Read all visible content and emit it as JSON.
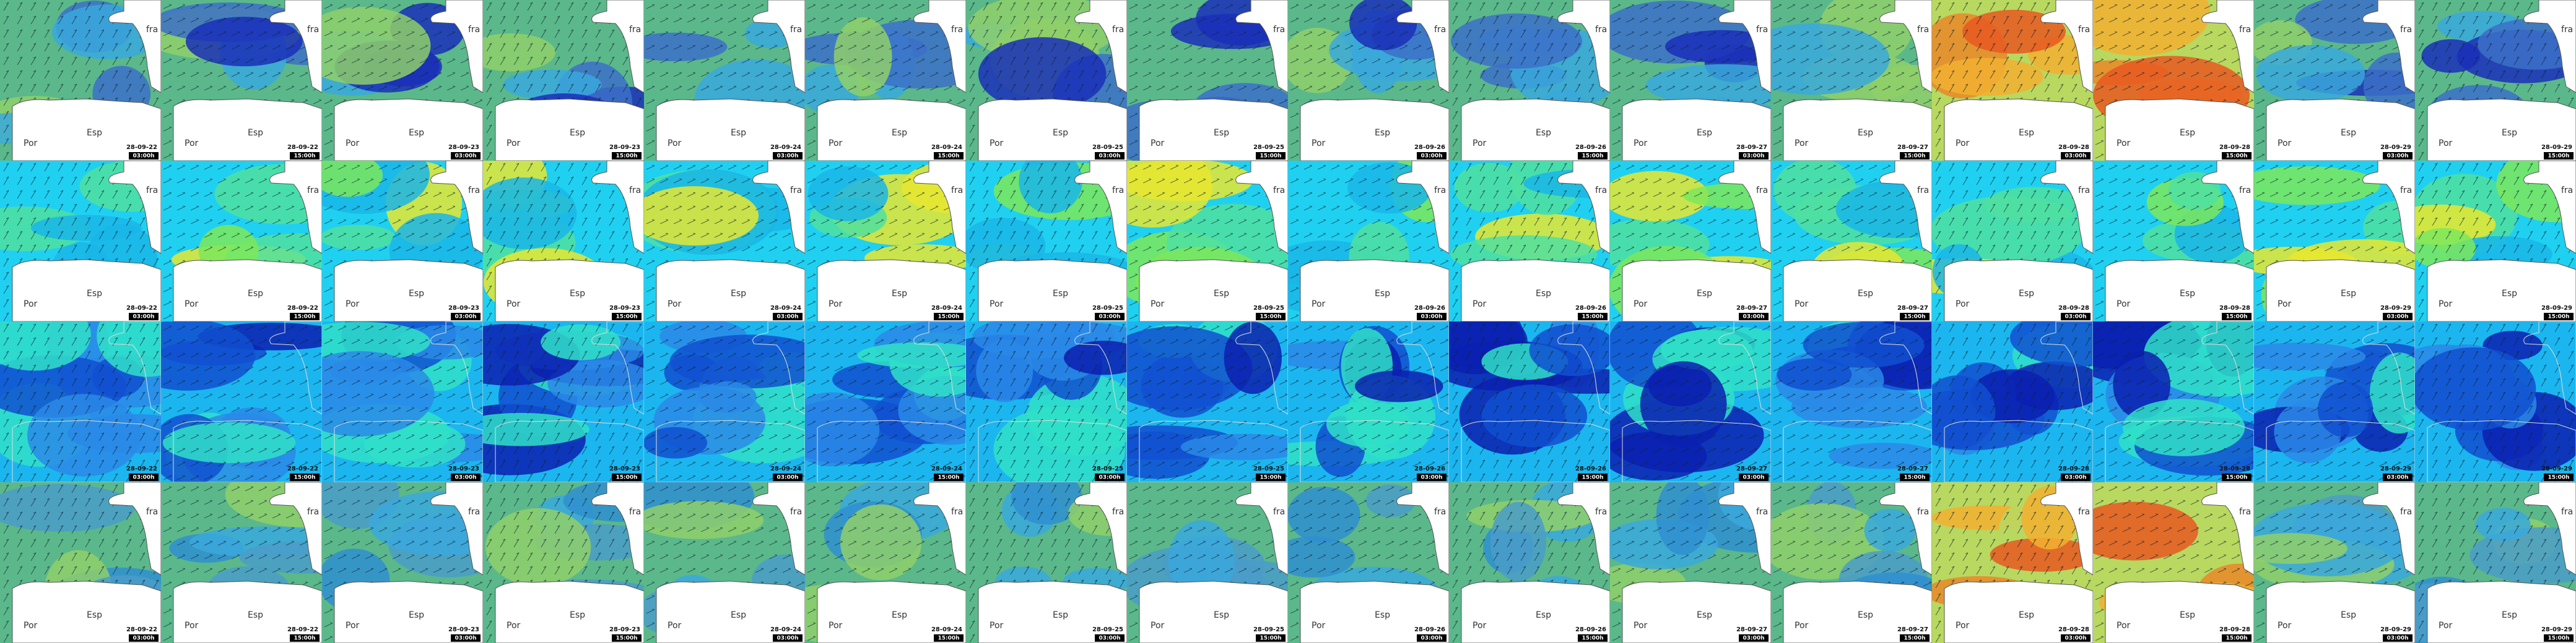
{
  "map_labels": {
    "france": "fra",
    "spain": "Esp",
    "portugal": "Por"
  },
  "columns": [
    {
      "date": "28-09-22",
      "time": "03:00h"
    },
    {
      "date": "28-09-22",
      "time": "15:00h"
    },
    {
      "date": "28-09-23",
      "time": "03:00h"
    },
    {
      "date": "28-09-23",
      "time": "15:00h"
    },
    {
      "date": "28-09-24",
      "time": "03:00h"
    },
    {
      "date": "28-09-24",
      "time": "15:00h"
    },
    {
      "date": "28-09-25",
      "time": "03:00h"
    },
    {
      "date": "28-09-25",
      "time": "15:00h"
    },
    {
      "date": "28-09-26",
      "time": "03:00h"
    },
    {
      "date": "28-09-26",
      "time": "15:00h"
    },
    {
      "date": "28-09-27",
      "time": "03:00h"
    },
    {
      "date": "28-09-27",
      "time": "15:00h"
    },
    {
      "date": "28-09-28",
      "time": "03:00h"
    },
    {
      "date": "28-09-28",
      "time": "15:00h"
    },
    {
      "date": "28-09-29",
      "time": "03:00h"
    },
    {
      "date": "28-09-29",
      "time": "15:00h"
    }
  ]
}
